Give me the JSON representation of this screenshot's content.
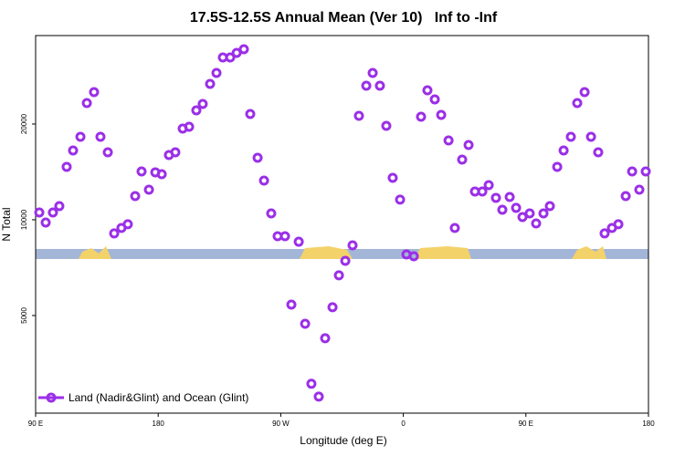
{
  "chart_data": {
    "type": "scatter",
    "title": "17.5S-12.5S Annual Mean (Ver 10)   Inf to -Inf",
    "x_label": "Longitude (deg E)",
    "y_label": "N Total",
    "x": [
      92.7,
      97.4,
      102.7,
      107.4,
      112.8,
      117.5,
      122.9,
      127.6,
      132.9,
      137.6,
      143,
      147.7,
      153,
      157.7,
      163.1,
      167.8,
      173.2,
      177.9,
      182.6,
      187.9,
      192.6,
      198,
      202.7,
      208,
      212.7,
      218.1,
      222.8,
      227.5,
      232.9,
      237.6,
      242.9,
      247.6,
      253,
      257.7,
      263,
      267.7,
      273.1,
      277.8,
      283.2,
      287.9,
      292.5,
      297.9,
      302.6,
      308,
      312.7,
      317.4,
      322.7,
      327.4,
      332.8,
      337.5,
      342.8,
      347.5,
      352.2,
      357.6,
      362.3,
      367.7,
      373,
      377.7,
      383.1,
      387.8,
      393.2,
      397.8,
      403.2,
      407.9,
      412.6,
      418,
      422.7,
      428,
      432.7,
      438.1,
      442.8,
      447.5,
      452.8,
      457.5,
      462.9,
      467.6,
      473,
      477.7,
      483,
      487.7,
      493.1,
      497.8,
      503.1,
      507.8,
      513.2,
      517.9,
      523.3,
      528,
      533.3,
      538
    ],
    "series": [
      {
        "name": "Land (Nadir&Glint) and Ocean (Glint)",
        "color": "#9b2fe8",
        "values": [
          10540,
          9800,
          10540,
          11040,
          14670,
          16520,
          18230,
          23280,
          25200,
          18230,
          16300,
          9060,
          9420,
          9680,
          11870,
          14190,
          12430,
          14100,
          13910,
          15980,
          16300,
          19350,
          19610,
          22080,
          23130,
          26740,
          28950,
          32390,
          32390,
          33470,
          34370,
          21510,
          15670,
          13280,
          10470,
          8880,
          8880,
          5410,
          8530,
          4710,
          3050,
          2780,
          4240,
          5310,
          6690,
          7430,
          8310,
          21220,
          26390,
          28950,
          26390,
          19740,
          13550,
          11570,
          7780,
          7680,
          21090,
          25540,
          23900,
          21360,
          17760,
          9420,
          15460,
          17180,
          12270,
          12270,
          12850,
          11720,
          10750,
          11790,
          10900,
          10200,
          10470,
          9740,
          10470,
          11040,
          14670,
          16520,
          18230,
          23280,
          25200,
          18230,
          16300,
          9060,
          9420,
          9680,
          11870,
          14190,
          12430,
          14190
        ]
      }
    ],
    "xlim": [
      90,
      540
    ],
    "xticks": [
      {
        "value": 90,
        "label": "90 E"
      },
      180,
      {
        "value": 270,
        "label": "90 W"
      },
      {
        "value": 360,
        "label": "0"
      },
      {
        "value": 450,
        "label": "90 E"
      },
      {
        "value": 540,
        "label": "180"
      }
    ],
    "ylim": [
      2466,
      37950
    ],
    "yticks": [
      5000,
      10000,
      20000
    ],
    "ylog": true,
    "legend": "lower left"
  }
}
